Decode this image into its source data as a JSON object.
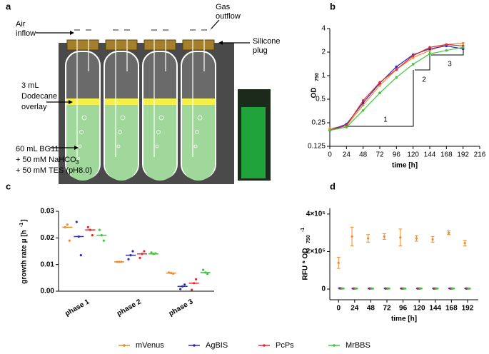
{
  "panel_labels": [
    "a",
    "b",
    "c",
    "d"
  ],
  "diagram": {
    "air_inflow": [
      "Air",
      "inflow"
    ],
    "gas_outflow": [
      "Gas",
      "outflow"
    ],
    "silicone_plug": [
      "Silicone",
      "plug"
    ],
    "overlay": [
      "3 mL",
      "Dodecane",
      "overlay"
    ],
    "medium": [
      "60 mL BG11",
      "+ 50 mM NaHCO",
      "+ 50 mM TES (pH8.0)"
    ],
    "medium_sub": "3"
  },
  "chart_data": [
    {
      "type": "line",
      "x": [
        0,
        24,
        48,
        72,
        96,
        120,
        144,
        168,
        192
      ],
      "series": [
        {
          "name": "mVenus",
          "color": "#f08c28",
          "values": [
            0.21,
            0.23,
            0.42,
            0.75,
            1.2,
            1.7,
            2.1,
            2.5,
            2.6
          ]
        },
        {
          "name": "AgBIS",
          "color": "#2b2bc0",
          "values": [
            0.2,
            0.24,
            0.45,
            0.8,
            1.3,
            1.85,
            2.2,
            2.4,
            2.2
          ]
        },
        {
          "name": "PcPs",
          "color": "#e8282d",
          "values": [
            0.2,
            0.23,
            0.48,
            0.82,
            1.2,
            1.8,
            2.3,
            2.5,
            2.4
          ]
        },
        {
          "name": "MrBBS",
          "color": "#3cc83c",
          "values": [
            0.2,
            0.22,
            0.36,
            0.6,
            0.95,
            1.4,
            1.9,
            2.1,
            2.3
          ]
        }
      ],
      "xlim": [
        0,
        216
      ],
      "xticks": [
        0,
        24,
        48,
        72,
        96,
        120,
        144,
        168,
        192,
        216
      ],
      "ylim": [
        0.125,
        4
      ],
      "yticks": [
        0.125,
        0.25,
        0.5,
        1,
        2,
        4
      ],
      "log_y": 2,
      "xlabel": "time [h]",
      "ylabel": "OD",
      "ylabel_sub": "750",
      "annotations": [
        "1",
        "2",
        "3"
      ]
    },
    {
      "type": "dot",
      "categories": [
        "phase 1",
        "phase 2",
        "phase 3"
      ],
      "series": [
        {
          "name": "mVenus",
          "color": "#f08c28",
          "values": [
            0.024,
            0.011,
            0.0068
          ],
          "points": [
            [
              0.024,
              0.025,
              0.019
            ],
            [
              0.011,
              0.011,
              0.011
            ],
            [
              0.007,
              0.0068,
              0.0066
            ]
          ]
        },
        {
          "name": "AgBIS",
          "color": "#2b2bc0",
          "values": [
            0.0205,
            0.0135,
            0.0018
          ],
          "points": [
            [
              0.026,
              0.0205,
              0.0135
            ],
            [
              0.012,
              0.0135,
              0.015
            ],
            [
              0.0008,
              0.0018,
              0.0025
            ]
          ]
        },
        {
          "name": "PcPs",
          "color": "#e8282d",
          "values": [
            0.023,
            0.014,
            0.003
          ],
          "points": [
            [
              0.024,
              0.023,
              0.021
            ],
            [
              0.0125,
              0.014,
              0.015
            ],
            [
              0.0005,
              0.003,
              0.0045
            ]
          ]
        },
        {
          "name": "MrBBS",
          "color": "#3cc83c",
          "values": [
            0.021,
            0.014,
            0.007
          ],
          "points": [
            [
              0.023,
              0.021,
              0.019
            ],
            [
              0.0145,
              0.014,
              0.0142
            ],
            [
              0.008,
              0.007,
              0.0065
            ]
          ]
        }
      ],
      "ylim": [
        0,
        0.03
      ],
      "yticks": [
        {
          "value": 0,
          "label": "0.00"
        },
        {
          "value": 0.01,
          "label": "0.01"
        },
        {
          "value": 0.02,
          "label": "0.02"
        },
        {
          "value": 0.03,
          "label": "0.03"
        }
      ],
      "ylabel": "growth rate μ [h",
      "ylabel_sup": "-1",
      "ylabel_end": "]"
    },
    {
      "type": "errorbar",
      "x": [
        0,
        20,
        44,
        68,
        92,
        116,
        140,
        164,
        188
      ],
      "series": [
        {
          "name": "mVenus",
          "color": "#f08c28",
          "values": [
            140000,
            280000,
            270000,
            280000,
            275000,
            270000,
            265000,
            300000,
            245000
          ],
          "errors": [
            30000,
            50000,
            20000,
            15000,
            45000,
            15000,
            15000,
            10000,
            15000
          ]
        },
        {
          "name": "AgBIS",
          "color": "#2b2bc0",
          "values": [
            4000,
            3000,
            3000,
            3000,
            3000,
            3000,
            3000,
            3000,
            3000
          ],
          "errors": [
            3000,
            2000,
            2000,
            2000,
            2000,
            2000,
            2000,
            2000,
            2000
          ]
        },
        {
          "name": "PcPs",
          "color": "#e8282d",
          "values": [
            3000,
            3000,
            3000,
            3000,
            3000,
            3000,
            3000,
            3000,
            3000
          ],
          "errors": [
            2000,
            2000,
            2000,
            2000,
            2000,
            2000,
            2000,
            2000,
            2000
          ]
        },
        {
          "name": "MrBBS",
          "color": "#3cc83c",
          "values": [
            3000,
            3000,
            3000,
            3000,
            3000,
            3000,
            3000,
            3000,
            3000
          ],
          "errors": [
            2000,
            2000,
            2000,
            2000,
            2000,
            2000,
            2000,
            2000,
            2000
          ]
        }
      ],
      "xlim": [
        -13,
        208
      ],
      "xticks": [
        0,
        24,
        48,
        72,
        96,
        120,
        144,
        168,
        192
      ],
      "ylim": [
        -57000,
        430000
      ],
      "yticks": [
        0,
        {
          "value": 200000,
          "label": "2×10⁵"
        },
        {
          "value": 400000,
          "label": "4×10⁵"
        }
      ],
      "xlabel": "time [h]",
      "ylabel": "RFU * OD",
      "ylabel_sub": "750",
      "ylabel_end": "-1"
    }
  ]
}
